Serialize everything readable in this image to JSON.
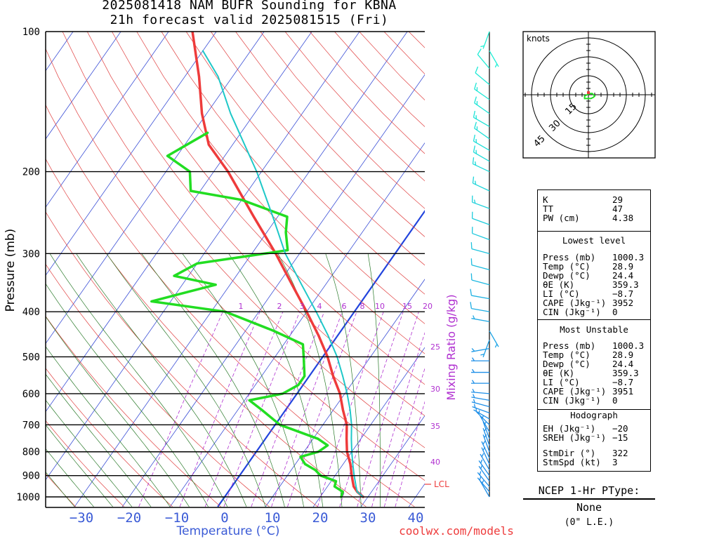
{
  "header": {
    "title_line1": "2025081418 NAM BUFR Sounding for KBNA",
    "title_line2": "21h forecast valid 2025081515 (Fri)"
  },
  "chart_data": {
    "type": "line",
    "subtype": "skew-T log-P sounding",
    "ylabel": "Pressure (mb)",
    "xlabel": "Temperature (°C)",
    "mixing_label": "Mixing Ratio (g/kg)",
    "pressure_ticks": [
      100,
      200,
      300,
      400,
      500,
      600,
      700,
      800,
      900,
      1000
    ],
    "temp_ticks": [
      -30,
      -20,
      -10,
      0,
      10,
      20,
      30,
      40
    ],
    "mixing_ratio_labels_row": [
      "1",
      "2",
      "3",
      "4",
      "6",
      "8",
      "10",
      "15",
      "20"
    ],
    "mixing_ratio_labels_side": [
      "25",
      "30",
      "35",
      "40"
    ],
    "lcl_label": "LCL",
    "series": [
      {
        "name": "Temperature",
        "color": "#ee3b3b",
        "points": [
          [
            1000,
            29
          ],
          [
            975,
            27
          ],
          [
            950,
            25.5
          ],
          [
            925,
            24.5
          ],
          [
            900,
            23.5
          ],
          [
            850,
            21.5
          ],
          [
            800,
            19
          ],
          [
            750,
            17
          ],
          [
            700,
            15
          ],
          [
            650,
            12
          ],
          [
            600,
            9
          ],
          [
            550,
            5
          ],
          [
            500,
            1
          ],
          [
            450,
            -4
          ],
          [
            400,
            -10
          ],
          [
            350,
            -17
          ],
          [
            300,
            -25
          ],
          [
            250,
            -35
          ],
          [
            200,
            -47
          ],
          [
            175,
            -55
          ],
          [
            150,
            -61
          ],
          [
            125,
            -67
          ],
          [
            100,
            -75
          ]
        ]
      },
      {
        "name": "Dewpoint",
        "color": "#22dd22",
        "points": [
          [
            1000,
            24.4
          ],
          [
            975,
            24
          ],
          [
            950,
            21.5
          ],
          [
            925,
            21
          ],
          [
            900,
            17
          ],
          [
            875,
            15
          ],
          [
            850,
            12
          ],
          [
            820,
            10
          ],
          [
            800,
            13
          ],
          [
            775,
            14
          ],
          [
            750,
            11
          ],
          [
            700,
            1
          ],
          [
            650,
            -5
          ],
          [
            620,
            -9
          ],
          [
            600,
            -3
          ],
          [
            575,
            -1
          ],
          [
            550,
            -1
          ],
          [
            500,
            -4
          ],
          [
            470,
            -6
          ],
          [
            440,
            -14
          ],
          [
            400,
            -27
          ],
          [
            380,
            -44
          ],
          [
            350,
            -33
          ],
          [
            335,
            -43
          ],
          [
            315,
            -40
          ],
          [
            295,
            -23
          ],
          [
            270,
            -26
          ],
          [
            250,
            -28
          ],
          [
            230,
            -40
          ],
          [
            220,
            -52
          ],
          [
            200,
            -55
          ],
          [
            185,
            -62
          ],
          [
            165,
            -57
          ]
        ]
      },
      {
        "name": "Parcel",
        "color": "#1ec8c8",
        "points": [
          [
            1000,
            29
          ],
          [
            975,
            27
          ],
          [
            950,
            26
          ],
          [
            900,
            24
          ],
          [
            850,
            22
          ],
          [
            800,
            20
          ],
          [
            750,
            18
          ],
          [
            700,
            16
          ],
          [
            650,
            13.5
          ],
          [
            600,
            10.5
          ],
          [
            550,
            7
          ],
          [
            500,
            3
          ],
          [
            450,
            -2
          ],
          [
            400,
            -8
          ],
          [
            350,
            -15
          ],
          [
            300,
            -23
          ],
          [
            250,
            -31
          ],
          [
            200,
            -41
          ],
          [
            150,
            -55
          ],
          [
            125,
            -63
          ],
          [
            110,
            -70
          ]
        ]
      }
    ],
    "winds": [
      [
        1000,
        330,
        3
      ],
      [
        975,
        320,
        5
      ],
      [
        950,
        320,
        6
      ],
      [
        925,
        325,
        6
      ],
      [
        900,
        325,
        6
      ],
      [
        875,
        330,
        6
      ],
      [
        850,
        335,
        6
      ],
      [
        825,
        335,
        6
      ],
      [
        800,
        340,
        6
      ],
      [
        775,
        340,
        7
      ],
      [
        750,
        340,
        7
      ],
      [
        725,
        330,
        7
      ],
      [
        700,
        315,
        8
      ],
      [
        680,
        300,
        8
      ],
      [
        660,
        290,
        8
      ],
      [
        640,
        285,
        9
      ],
      [
        620,
        280,
        9
      ],
      [
        600,
        275,
        9
      ],
      [
        570,
        270,
        9
      ],
      [
        540,
        270,
        8
      ],
      [
        510,
        270,
        6
      ],
      [
        480,
        260,
        5
      ],
      [
        460,
        200,
        4
      ],
      [
        440,
        150,
        5
      ],
      [
        420,
        280,
        5
      ],
      [
        400,
        280,
        10
      ],
      [
        375,
        280,
        10
      ],
      [
        350,
        285,
        10
      ],
      [
        325,
        285,
        11
      ],
      [
        300,
        285,
        11
      ],
      [
        280,
        290,
        12
      ],
      [
        260,
        290,
        12
      ],
      [
        240,
        290,
        13
      ],
      [
        220,
        295,
        14
      ],
      [
        200,
        295,
        14
      ],
      [
        190,
        300,
        15
      ],
      [
        180,
        300,
        16
      ],
      [
        170,
        305,
        16
      ],
      [
        160,
        300,
        15
      ],
      [
        150,
        305,
        14
      ],
      [
        140,
        305,
        13
      ],
      [
        130,
        310,
        12
      ],
      [
        120,
        320,
        10
      ],
      [
        110,
        150,
        4
      ],
      [
        100,
        200,
        3
      ]
    ],
    "hodograph": {
      "units_label": "knots",
      "ring_labels": [
        "15",
        "30",
        "45"
      ],
      "points": [
        [
          -1,
          0
        ],
        [
          -3,
          -1
        ],
        [
          -3,
          -3
        ],
        [
          -1,
          -3
        ],
        [
          2,
          -3
        ],
        [
          4,
          -2
        ],
        [
          5,
          -1
        ],
        [
          3,
          1
        ],
        [
          1,
          1
        ],
        [
          -1,
          0
        ]
      ],
      "storm_motion": [
        0,
        0
      ]
    }
  },
  "params": {
    "K": "29",
    "TT": "47",
    "PW (cm)": "4.38",
    "lowest_level_header": "Lowest level",
    "lowest_press_label": "Press (mb)",
    "lowest_press": "1000.3",
    "lowest_temp_label": "Temp (°C)",
    "lowest_temp": "28.9",
    "lowest_dewp_label": "Dewp (°C)",
    "lowest_dewp": "24.4",
    "lowest_thetae_label": "θE (K)",
    "lowest_thetae": "359.3",
    "lowest_li_label": "LI (°C)",
    "lowest_li": "−8.7",
    "lowest_cape_label": "CAPE (Jkg⁻¹)",
    "lowest_cape": "3952",
    "lowest_cin_label": "CIN (Jkg⁻¹)",
    "lowest_cin": "0",
    "mu_header": "Most Unstable",
    "mu_press": "1000.3",
    "mu_temp": "28.9",
    "mu_dewp": "24.4",
    "mu_thetae": "359.3",
    "mu_li": "−8.7",
    "mu_cape": "3951",
    "mu_cin": "0",
    "hodo_header": "Hodograph",
    "eh_label": "EH (Jkg⁻¹)",
    "eh": "−20",
    "sreh_label": "SREH (Jkg⁻¹)",
    "sreh": "−15",
    "stmdir_label": "StmDir (°)",
    "stmdir": "322",
    "stmspd_label": "StmSpd (kt)",
    "stmspd": "3"
  },
  "ptype": {
    "title": "NCEP 1-Hr PType:",
    "value": "None",
    "sub": "(0\" L.E.)"
  },
  "footer": {
    "credit": "coolwx.com/models"
  },
  "colors": {
    "temperature": "#ee3b3b",
    "dewpoint": "#22dd22",
    "parcel": "#1ec8c8",
    "isotherm": "#3b4fd6",
    "dry_adiabat": "#e04040",
    "moist_adiabat": "#2a7a2a",
    "mixing_ratio": "#b030d0",
    "zero_isotherm": "#2244dd",
    "wind": "#1e90ff"
  }
}
